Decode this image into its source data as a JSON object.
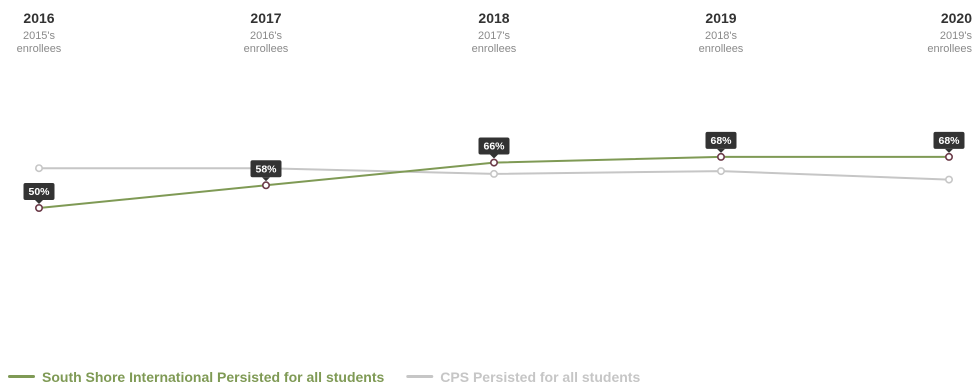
{
  "chart_data": {
    "type": "line",
    "categories": [
      "2016",
      "2017",
      "2018",
      "2019",
      "2020"
    ],
    "category_subtitles": [
      [
        "2015's",
        "enrollees"
      ],
      [
        "2016's",
        "enrollees"
      ],
      [
        "2017's",
        "enrollees"
      ],
      [
        "2018's",
        "enrollees"
      ],
      [
        "2019's",
        "enrollees"
      ]
    ],
    "series": [
      {
        "name": "South Shore International Persisted for all students",
        "values": [
          50,
          58,
          66,
          68,
          68
        ],
        "labels": [
          "50%",
          "58%",
          "66%",
          "68%",
          "68%"
        ],
        "color": "#7f9a55",
        "marker_color": "#6b3a48"
      },
      {
        "name": "CPS Persisted for all students",
        "values": [
          64,
          64,
          62,
          63,
          60
        ],
        "color": "#c6c6c6",
        "marker_color": "#c6c6c6"
      }
    ],
    "legend_position": "bottom-left",
    "grid": false,
    "label_color": "#333333"
  }
}
